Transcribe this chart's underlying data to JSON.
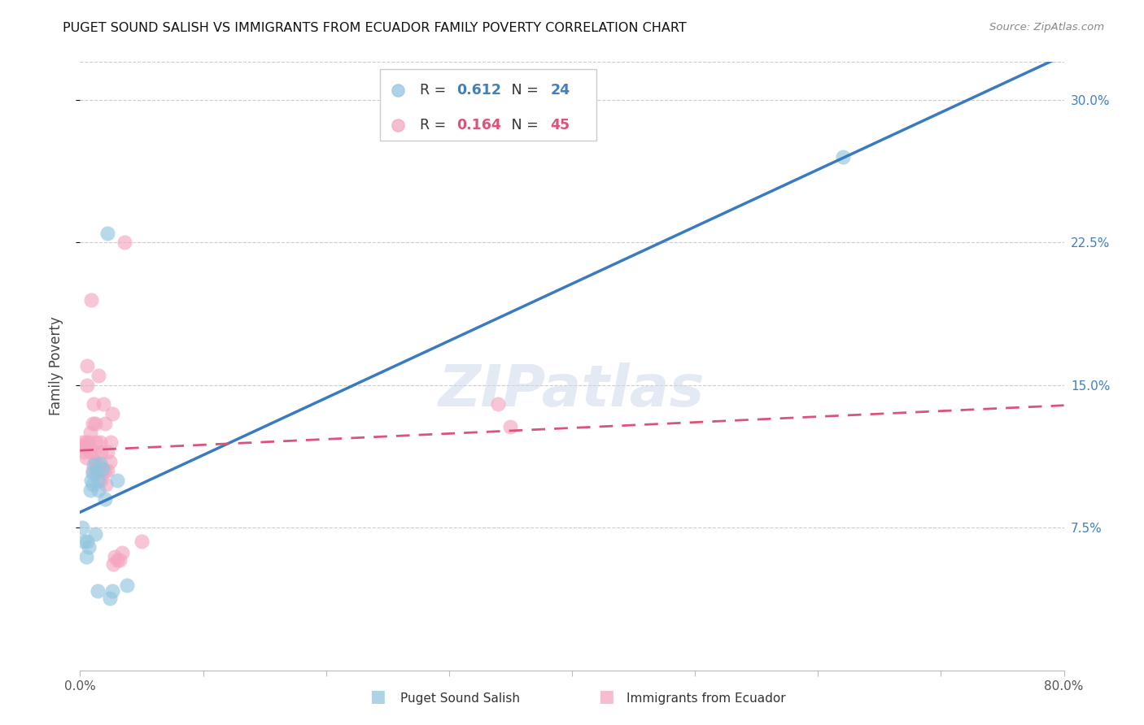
{
  "title": "PUGET SOUND SALISH VS IMMIGRANTS FROM ECUADOR FAMILY POVERTY CORRELATION CHART",
  "source": "Source: ZipAtlas.com",
  "ylabel": "Family Poverty",
  "xlim": [
    0.0,
    0.8
  ],
  "ylim": [
    0.0,
    0.32
  ],
  "ytick_positions": [
    0.075,
    0.15,
    0.225,
    0.3
  ],
  "ytick_labels": [
    "7.5%",
    "15.0%",
    "22.5%",
    "30.0%"
  ],
  "xtick_positions": [
    0.0,
    0.1,
    0.2,
    0.3,
    0.4,
    0.5,
    0.6,
    0.7,
    0.8
  ],
  "xtick_labels": [
    "0.0%",
    "",
    "",
    "",
    "",
    "",
    "",
    "",
    "80.0%"
  ],
  "blue_R": 0.612,
  "blue_N": 24,
  "pink_R": 0.164,
  "pink_N": 45,
  "blue_color": "#92c5de",
  "pink_color": "#f4a6c0",
  "blue_line_color": "#3a7abf",
  "pink_line_color": "#d9537a",
  "watermark": "ZIPatlas",
  "blue_x": [
    0.002,
    0.003,
    0.005,
    0.006,
    0.007,
    0.008,
    0.009,
    0.01,
    0.01,
    0.011,
    0.012,
    0.013,
    0.014,
    0.015,
    0.015,
    0.016,
    0.018,
    0.02,
    0.022,
    0.024,
    0.026,
    0.03,
    0.038,
    0.62
  ],
  "blue_y": [
    0.075,
    0.068,
    0.06,
    0.068,
    0.065,
    0.095,
    0.1,
    0.098,
    0.104,
    0.108,
    0.072,
    0.104,
    0.042,
    0.095,
    0.1,
    0.109,
    0.106,
    0.09,
    0.23,
    0.038,
    0.042,
    0.1,
    0.045,
    0.27
  ],
  "pink_x": [
    0.001,
    0.002,
    0.003,
    0.004,
    0.005,
    0.005,
    0.006,
    0.006,
    0.007,
    0.008,
    0.008,
    0.009,
    0.01,
    0.01,
    0.011,
    0.011,
    0.012,
    0.012,
    0.013,
    0.013,
    0.014,
    0.015,
    0.015,
    0.016,
    0.017,
    0.017,
    0.018,
    0.019,
    0.02,
    0.02,
    0.021,
    0.022,
    0.022,
    0.024,
    0.025,
    0.026,
    0.027,
    0.028,
    0.03,
    0.032,
    0.034,
    0.036,
    0.05,
    0.34,
    0.35
  ],
  "pink_y": [
    0.118,
    0.12,
    0.115,
    0.118,
    0.112,
    0.12,
    0.15,
    0.16,
    0.12,
    0.115,
    0.125,
    0.195,
    0.105,
    0.13,
    0.115,
    0.14,
    0.11,
    0.13,
    0.108,
    0.12,
    0.105,
    0.108,
    0.155,
    0.12,
    0.1,
    0.115,
    0.105,
    0.14,
    0.105,
    0.13,
    0.098,
    0.105,
    0.115,
    0.11,
    0.12,
    0.135,
    0.056,
    0.06,
    0.058,
    0.058,
    0.062,
    0.225,
    0.068,
    0.14,
    0.128
  ]
}
